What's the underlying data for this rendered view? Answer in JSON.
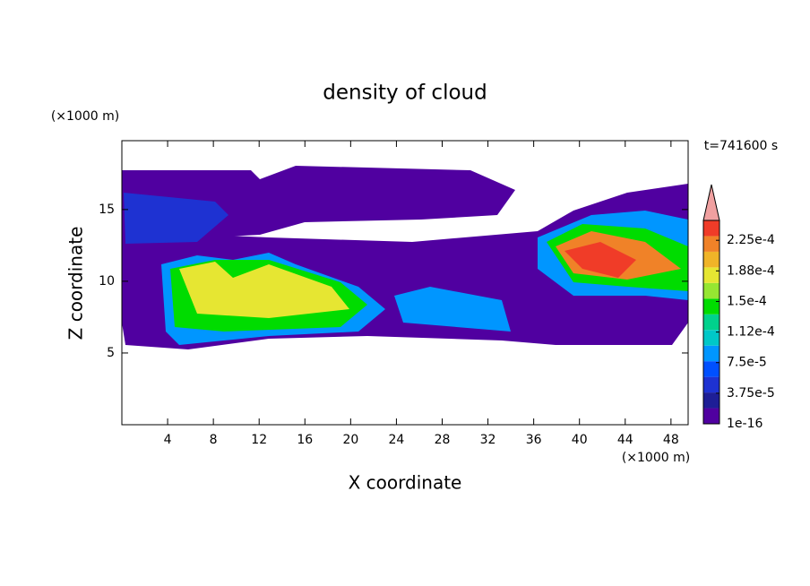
{
  "chart_data": {
    "type": "contour",
    "title": "density of cloud",
    "x_label": "X coordinate",
    "y_label": "Z coordinate",
    "x_unit": "(×1000 m)",
    "y_unit": "(×1000 m)",
    "time_label": "t=741600 s",
    "xlim": [
      0,
      49.5
    ],
    "xticks": [
      4,
      8,
      12,
      16,
      20,
      24,
      28,
      32,
      36,
      40,
      44,
      48
    ],
    "ylim": [
      0,
      19.8
    ],
    "yticks": [
      5,
      10,
      15
    ],
    "colorbar": {
      "colors": [
        "#5000a0",
        "#1e1e96",
        "#1e32d2",
        "#0050ff",
        "#0096ff",
        "#00c8c8",
        "#00d28c",
        "#00dc00",
        "#96e632",
        "#e6e632",
        "#f0b428",
        "#f08228",
        "#f03c28",
        "#f0a0a0"
      ],
      "ticks": [
        {
          "value": 1e-16,
          "label": "1e-16"
        },
        {
          "value": 3.75e-05,
          "label": "3.75e-5"
        },
        {
          "value": 7.5e-05,
          "label": "7.5e-5"
        },
        {
          "value": 0.000112,
          "label": "1.12e-4"
        },
        {
          "value": 0.00015,
          "label": "1.5e-4"
        },
        {
          "value": 0.000188,
          "label": "1.88e-4"
        },
        {
          "value": 0.000225,
          "label": "2.25e-4"
        }
      ]
    }
  }
}
